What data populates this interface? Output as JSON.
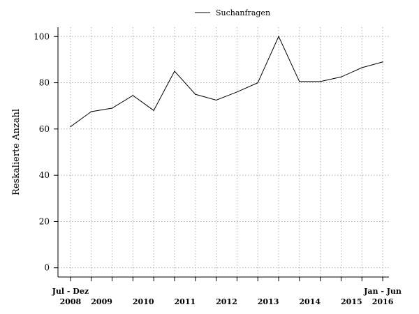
{
  "chart_data": {
    "type": "line",
    "title": "",
    "xlabel": "",
    "ylabel": "Reskalierte Anzahl",
    "ylim": [
      -4,
      104
    ],
    "y_ticks": [
      0,
      20,
      40,
      60,
      80,
      100
    ],
    "grid": true,
    "legend": {
      "position": "top-center",
      "entries": [
        "Suchanfragen"
      ]
    },
    "x": [
      0,
      1,
      2,
      3,
      4,
      5,
      6,
      7,
      8,
      9,
      10,
      11,
      12,
      13,
      14,
      15
    ],
    "xlim": [
      -0.6,
      15.3
    ],
    "series": [
      {
        "name": "Suchanfragen",
        "values": [
          61,
          67.5,
          69,
          74.5,
          68,
          85,
          75,
          72.5,
          76,
          80,
          100,
          80.5,
          80.5,
          82.5,
          86.5,
          89
        ]
      }
    ],
    "x_tick_labels": [
      {
        "x": 0,
        "lines": [
          "Jul - Dez",
          "2008"
        ],
        "anchor": "middle"
      },
      {
        "x": 1.5,
        "lines": [
          "2009"
        ],
        "anchor": "middle"
      },
      {
        "x": 3.5,
        "lines": [
          "2010"
        ],
        "anchor": "middle"
      },
      {
        "x": 5.5,
        "lines": [
          "2011"
        ],
        "anchor": "middle"
      },
      {
        "x": 7.5,
        "lines": [
          "2012"
        ],
        "anchor": "middle"
      },
      {
        "x": 9.5,
        "lines": [
          "2013"
        ],
        "anchor": "middle"
      },
      {
        "x": 11.5,
        "lines": [
          "2014"
        ],
        "anchor": "middle"
      },
      {
        "x": 13.5,
        "lines": [
          "2015"
        ],
        "anchor": "middle"
      },
      {
        "x": 15,
        "lines": [
          "Jan - Jun",
          "2016"
        ],
        "anchor": "middle"
      }
    ]
  }
}
